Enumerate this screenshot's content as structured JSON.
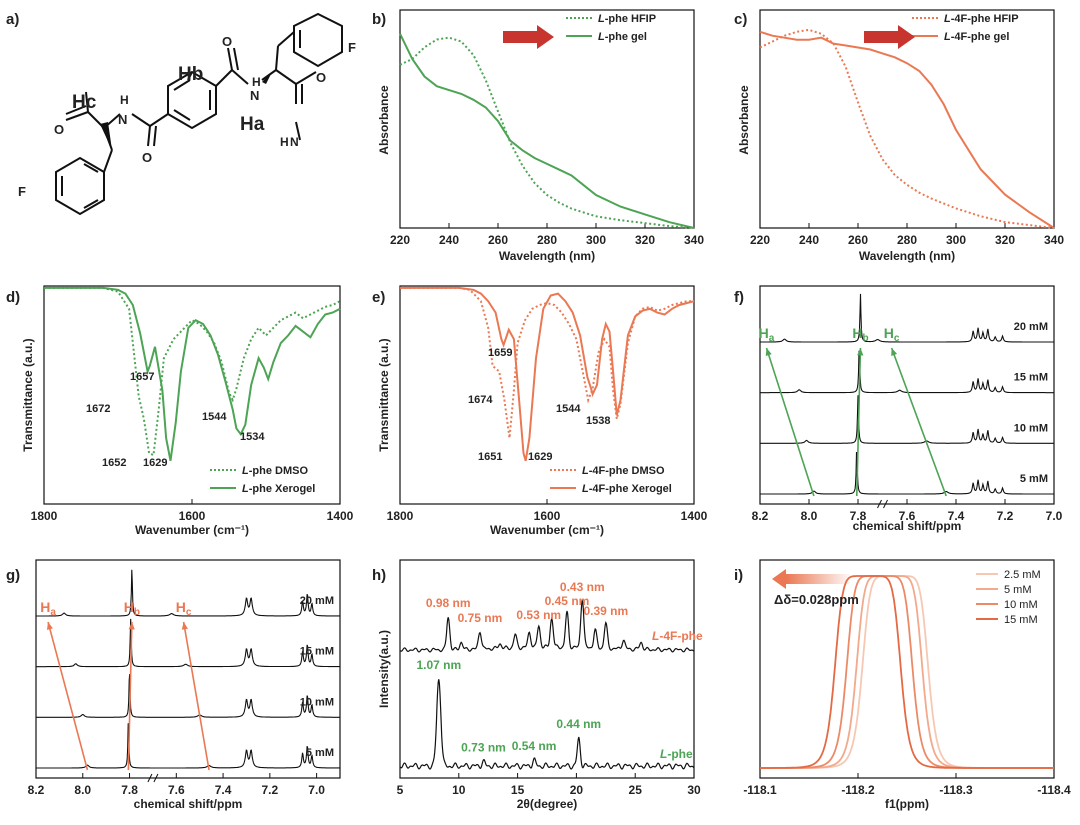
{
  "colors": {
    "green": "#4ca454",
    "orange": "#ea7853",
    "axis": "#111111"
  },
  "panels": {
    "a": {
      "label": "a)",
      "atoms": {
        "hb": "Hb",
        "hc": "Hc",
        "ha": "Ha",
        "f1": "F",
        "f2": "F",
        "n1": "N",
        "n2": "N",
        "n3": "N",
        "h1": "H",
        "h2": "H",
        "h3": "H",
        "o1": "O",
        "o2": "O",
        "o3": "O",
        "o4": "O"
      }
    },
    "b": {
      "label": "b)"
    },
    "c": {
      "label": "c)"
    },
    "d": {
      "label": "d)"
    },
    "e": {
      "label": "e)"
    },
    "f": {
      "label": "f)"
    },
    "g": {
      "label": "g)"
    },
    "h": {
      "label": "h)"
    },
    "i": {
      "label": "i)"
    }
  },
  "chart_data": [
    {
      "id": "b",
      "type": "line",
      "xlabel": "Wavelength (nm)",
      "ylabel": "Absorbance",
      "xlim": [
        220,
        340
      ],
      "ylim": [
        0,
        1.05
      ],
      "xticks": [
        "220",
        "240",
        "260",
        "280",
        "300",
        "320",
        "340"
      ],
      "series": [
        {
          "name": "L-phe HFIP",
          "name_italic": "L",
          "name_rest": "-phe HFIP",
          "style": "dotted",
          "color": "#4ca454",
          "x": [
            220,
            225,
            230,
            235,
            240,
            245,
            250,
            255,
            260,
            265,
            270,
            275,
            280,
            285,
            290,
            295,
            300,
            310,
            320,
            330,
            340
          ],
          "y": [
            0.84,
            0.87,
            0.93,
            0.97,
            0.98,
            0.96,
            0.89,
            0.76,
            0.6,
            0.44,
            0.32,
            0.23,
            0.17,
            0.13,
            0.1,
            0.08,
            0.06,
            0.04,
            0.025,
            0.01,
            0.0
          ]
        },
        {
          "name": "L-phe gel",
          "name_italic": "L",
          "name_rest": "-phe gel",
          "style": "solid",
          "color": "#4ca454",
          "x": [
            220,
            225,
            230,
            235,
            240,
            245,
            250,
            255,
            260,
            265,
            270,
            275,
            280,
            285,
            290,
            295,
            300,
            310,
            320,
            330,
            340
          ],
          "y": [
            1.0,
            0.87,
            0.78,
            0.73,
            0.71,
            0.69,
            0.66,
            0.62,
            0.55,
            0.45,
            0.4,
            0.36,
            0.33,
            0.3,
            0.27,
            0.22,
            0.17,
            0.11,
            0.07,
            0.03,
            0.0
          ]
        }
      ]
    },
    {
      "id": "c",
      "type": "line",
      "xlabel": "Wavelength (nm)",
      "ylabel": "Absorbance",
      "xlim": [
        220,
        340
      ],
      "ylim": [
        0,
        1.05
      ],
      "xticks": [
        "220",
        "240",
        "260",
        "280",
        "300",
        "320",
        "340"
      ],
      "series": [
        {
          "name": "L-4F-phe HFIP",
          "name_italic": "L",
          "name_rest": "-4F-phe HFIP",
          "style": "dotted",
          "color": "#ea7853",
          "x": [
            220,
            225,
            230,
            235,
            240,
            245,
            250,
            255,
            260,
            265,
            270,
            275,
            280,
            285,
            290,
            300,
            310,
            320,
            330,
            340
          ],
          "y": [
            0.92,
            0.95,
            0.98,
            1.0,
            1.01,
            0.99,
            0.94,
            0.82,
            0.64,
            0.47,
            0.35,
            0.27,
            0.22,
            0.18,
            0.15,
            0.1,
            0.06,
            0.03,
            0.015,
            0.0
          ]
        },
        {
          "name": "L-4F-phe gel",
          "name_italic": "L",
          "name_rest": "-4F-phe gel",
          "style": "solid",
          "color": "#ea7853",
          "x": [
            220,
            225,
            230,
            235,
            240,
            245,
            250,
            255,
            260,
            265,
            270,
            275,
            280,
            285,
            290,
            295,
            300,
            310,
            320,
            330,
            340
          ],
          "y": [
            1.0,
            0.98,
            0.97,
            0.96,
            0.96,
            0.97,
            0.94,
            0.93,
            0.92,
            0.91,
            0.89,
            0.87,
            0.84,
            0.8,
            0.73,
            0.63,
            0.5,
            0.3,
            0.17,
            0.08,
            0.0
          ]
        }
      ]
    },
    {
      "id": "d",
      "type": "line",
      "xlabel": "Wavenumber (cm⁻¹)",
      "ylabel": "Transmittance (a.u.)",
      "xlim": [
        1800,
        1400
      ],
      "ylim": [
        0,
        1
      ],
      "xticks": [
        "1800",
        "1600",
        "1400"
      ],
      "annotations": [
        "1657",
        "1672",
        "1652",
        "1629",
        "1544",
        "1534"
      ],
      "series": [
        {
          "name": "L-phe DMSO",
          "name_italic": "L",
          "name_rest": "-phe DMSO",
          "style": "dotted",
          "color": "#4ca454",
          "x": [
            1800,
            1720,
            1700,
            1685,
            1672,
            1665,
            1658,
            1652,
            1645,
            1638,
            1625,
            1610,
            1600,
            1590,
            1580,
            1570,
            1560,
            1550,
            1545,
            1540,
            1530,
            1520,
            1510,
            1500,
            1490,
            1480,
            1470,
            1460,
            1450,
            1440,
            1430,
            1420,
            1410,
            1400
          ],
          "y": [
            0.99,
            0.99,
            0.97,
            0.88,
            0.42,
            0.3,
            0.12,
            0.11,
            0.35,
            0.62,
            0.72,
            0.78,
            0.82,
            0.8,
            0.76,
            0.7,
            0.6,
            0.44,
            0.4,
            0.46,
            0.62,
            0.72,
            0.78,
            0.74,
            0.78,
            0.82,
            0.84,
            0.86,
            0.83,
            0.85,
            0.87,
            0.89,
            0.9,
            0.92
          ]
        },
        {
          "name": "L-phe Xerogel",
          "name_italic": "L",
          "name_rest": "-phe Xerogel",
          "style": "solid",
          "color": "#4ca454",
          "x": [
            1800,
            1720,
            1700,
            1690,
            1680,
            1670,
            1660,
            1657,
            1650,
            1640,
            1635,
            1629,
            1622,
            1615,
            1605,
            1595,
            1585,
            1575,
            1565,
            1555,
            1545,
            1540,
            1534,
            1528,
            1520,
            1510,
            1503,
            1497,
            1490,
            1480,
            1470,
            1460,
            1450,
            1440,
            1430,
            1420,
            1410,
            1400
          ],
          "y": [
            0.99,
            0.99,
            0.98,
            0.96,
            0.9,
            0.75,
            0.55,
            0.58,
            0.68,
            0.45,
            0.2,
            0.08,
            0.28,
            0.55,
            0.78,
            0.82,
            0.8,
            0.74,
            0.64,
            0.5,
            0.35,
            0.25,
            0.22,
            0.27,
            0.48,
            0.62,
            0.57,
            0.51,
            0.6,
            0.7,
            0.74,
            0.79,
            0.76,
            0.73,
            0.8,
            0.85,
            0.86,
            0.88
          ]
        }
      ]
    },
    {
      "id": "e",
      "type": "line",
      "xlabel": "Wavenumber (cm⁻¹)",
      "ylabel": "Transmittance (a.u.)",
      "xlim": [
        1800,
        1400
      ],
      "ylim": [
        0,
        1
      ],
      "xticks": [
        "1800",
        "1600",
        "1400"
      ],
      "annotations": [
        "1659",
        "1674",
        "1651",
        "1629",
        "1544",
        "1538"
      ],
      "series": [
        {
          "name": "L-4F-phe DMSO",
          "name_italic": "L",
          "name_rest": "-4F-phe DMSO",
          "style": "dotted",
          "color": "#ea7853",
          "x": [
            1800,
            1720,
            1705,
            1690,
            1680,
            1674,
            1665,
            1658,
            1651,
            1645,
            1640,
            1630,
            1620,
            1610,
            1600,
            1590,
            1580,
            1570,
            1560,
            1550,
            1544,
            1538,
            1530,
            1522,
            1515,
            1510,
            1505,
            1500,
            1490,
            1480,
            1470,
            1460,
            1450,
            1440,
            1430,
            1420,
            1410,
            1400
          ],
          "y": [
            0.99,
            0.99,
            0.98,
            0.92,
            0.78,
            0.58,
            0.55,
            0.4,
            0.2,
            0.45,
            0.7,
            0.82,
            0.88,
            0.9,
            0.91,
            0.9,
            0.86,
            0.8,
            0.72,
            0.52,
            0.4,
            0.46,
            0.65,
            0.72,
            0.68,
            0.45,
            0.3,
            0.38,
            0.7,
            0.84,
            0.88,
            0.89,
            0.87,
            0.88,
            0.9,
            0.91,
            0.92,
            0.92
          ]
        },
        {
          "name": "L-4F-phe Xerogel",
          "name_italic": "L",
          "name_rest": "-4F-phe Xerogel",
          "style": "solid",
          "color": "#ea7853",
          "x": [
            1800,
            1720,
            1700,
            1690,
            1680,
            1670,
            1662,
            1659,
            1652,
            1645,
            1638,
            1632,
            1629,
            1624,
            1615,
            1605,
            1595,
            1585,
            1575,
            1565,
            1555,
            1545,
            1540,
            1538,
            1532,
            1525,
            1520,
            1515,
            1510,
            1505,
            1500,
            1490,
            1480,
            1470,
            1460,
            1450,
            1440,
            1430,
            1420,
            1410,
            1400
          ],
          "y": [
            0.99,
            0.99,
            0.98,
            0.96,
            0.92,
            0.86,
            0.72,
            0.69,
            0.77,
            0.72,
            0.4,
            0.12,
            0.08,
            0.2,
            0.62,
            0.88,
            0.95,
            0.96,
            0.92,
            0.86,
            0.74,
            0.52,
            0.46,
            0.43,
            0.48,
            0.72,
            0.8,
            0.76,
            0.55,
            0.32,
            0.4,
            0.74,
            0.84,
            0.87,
            0.88,
            0.86,
            0.85,
            0.88,
            0.9,
            0.91,
            0.92
          ]
        }
      ]
    },
    {
      "id": "f",
      "type": "line",
      "xlabel": "chemical shift/ppm",
      "ylabel": "",
      "xlim": [
        8.2,
        7.0
      ],
      "xticks": [
        "8.2",
        "8.0",
        "7.8",
        "7.6",
        "7.4",
        "7.2",
        "7.0"
      ],
      "peak_labels": [
        "Ha",
        "Hb",
        "Hc"
      ],
      "series": [
        {
          "name": "20 mM",
          "ha": 8.1,
          "hb": 7.79,
          "hc": 7.72
        },
        {
          "name": "15 mM",
          "ha": 8.04,
          "hb": 7.795,
          "hc": 7.63
        },
        {
          "name": "10 mM",
          "ha": 8.01,
          "hb": 7.8,
          "hc": 7.52
        },
        {
          "name": "5 mM",
          "ha": 7.98,
          "hb": 7.805,
          "hc": 7.44
        }
      ]
    },
    {
      "id": "g",
      "type": "line",
      "xlabel": "chemical shift/ppm",
      "ylabel": "",
      "xlim": [
        8.2,
        6.9
      ],
      "xticks": [
        "8.2",
        "8.0",
        "7.8",
        "7.6",
        "7.4",
        "7.2",
        "7.0"
      ],
      "peak_labels": [
        "Ha",
        "Hb",
        "Hc"
      ],
      "series": [
        {
          "name": "20 mM",
          "ha": 8.08,
          "hb": 7.79,
          "hc": 7.62
        },
        {
          "name": "15 mM",
          "ha": 8.03,
          "hb": 7.795,
          "hc": 7.56
        },
        {
          "name": "10 mM",
          "ha": 8.0,
          "hb": 7.8,
          "hc": 7.5
        },
        {
          "name": "5 mM",
          "ha": 7.98,
          "hb": 7.805,
          "hc": 7.46
        }
      ]
    },
    {
      "id": "h",
      "type": "line",
      "xlabel": "2θ(degree)",
      "ylabel": "Intensity(a.u.)",
      "xlim": [
        5,
        30
      ],
      "xticks": [
        "5",
        "10",
        "15",
        "20",
        "25",
        "30"
      ],
      "series": [
        {
          "name": "L-4F-phe",
          "name_italic": "L",
          "name_rest": "-4F-phe",
          "peaks": [
            {
              "x": 9.1,
              "h": 0.55,
              "label": "0.98 nm"
            },
            {
              "x": 10.2,
              "h": 0.12
            },
            {
              "x": 11.8,
              "h": 0.3,
              "label": "0.75 nm"
            },
            {
              "x": 13.5,
              "h": 0.08
            },
            {
              "x": 14.8,
              "h": 0.22
            },
            {
              "x": 16.0,
              "h": 0.25
            },
            {
              "x": 16.8,
              "h": 0.35,
              "label": "0.53 nm"
            },
            {
              "x": 17.9,
              "h": 0.48
            },
            {
              "x": 19.2,
              "h": 0.58,
              "label": "0.45 nm"
            },
            {
              "x": 20.5,
              "h": 0.82,
              "label": "0.43 nm"
            },
            {
              "x": 21.6,
              "h": 0.3
            },
            {
              "x": 22.5,
              "h": 0.42,
              "label": "0.39 nm"
            },
            {
              "x": 24.0,
              "h": 0.15
            },
            {
              "x": 25.5,
              "h": 0.12
            }
          ]
        },
        {
          "name": "L-phe",
          "name_italic": "L",
          "name_rest": "-phe",
          "peaks": [
            {
              "x": 8.3,
              "h": 1.0,
              "label": "1.07 nm"
            },
            {
              "x": 12.1,
              "h": 0.05,
              "label": "0.73 nm"
            },
            {
              "x": 16.4,
              "h": 0.07,
              "label": "0.54 nm"
            },
            {
              "x": 20.2,
              "h": 0.32,
              "label": "0.44 nm"
            }
          ]
        }
      ]
    },
    {
      "id": "i",
      "type": "line",
      "xlabel": "f1(ppm)",
      "ylabel": "",
      "xlim": [
        -118.1,
        -118.4
      ],
      "xticks": [
        "-118.1",
        "-118.2",
        "-118.3",
        "-118.4"
      ],
      "annotation": "Δδ=0.028ppm",
      "series": [
        {
          "name": "2.5 mM",
          "center": -118.238,
          "color": "#f6c8b4"
        },
        {
          "name": "5 mM",
          "center": -118.232,
          "color": "#f2a98c"
        },
        {
          "name": "10 mM",
          "center": -118.222,
          "color": "#ec8a68"
        },
        {
          "name": "15 mM",
          "center": -118.21,
          "color": "#e46a45"
        }
      ]
    }
  ]
}
